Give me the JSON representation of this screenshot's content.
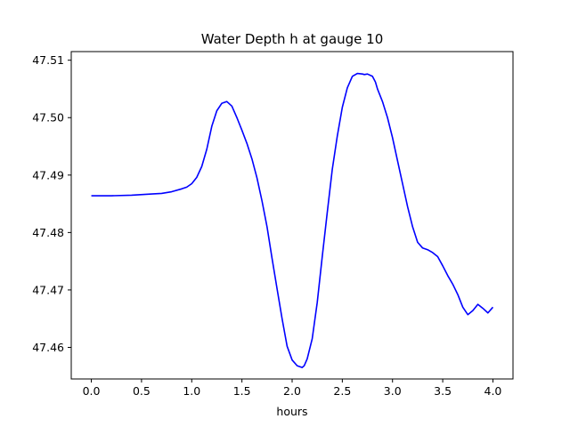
{
  "chart_data": {
    "type": "line",
    "title": "Water Depth h at gauge 10",
    "xlabel": "hours",
    "ylabel": "",
    "xlim": [
      -0.2,
      4.2
    ],
    "ylim": [
      47.4545,
      47.5115
    ],
    "xticks": [
      0.0,
      0.5,
      1.0,
      1.5,
      2.0,
      2.5,
      3.0,
      3.5,
      4.0
    ],
    "xtick_labels": [
      "0.0",
      "0.5",
      "1.0",
      "1.5",
      "2.0",
      "2.5",
      "3.0",
      "3.5",
      "4.0"
    ],
    "yticks": [
      47.46,
      47.47,
      47.48,
      47.49,
      47.5,
      47.51
    ],
    "ytick_labels": [
      "47.46",
      "47.47",
      "47.48",
      "47.49",
      "47.50",
      "47.51"
    ],
    "grid": false,
    "legend": "none",
    "series": [
      {
        "color": "#0000ff",
        "x": [
          0.0,
          0.2,
          0.4,
          0.6,
          0.7,
          0.8,
          0.9,
          0.95,
          1.0,
          1.05,
          1.1,
          1.15,
          1.2,
          1.25,
          1.3,
          1.35,
          1.4,
          1.45,
          1.5,
          1.55,
          1.6,
          1.65,
          1.7,
          1.75,
          1.8,
          1.85,
          1.9,
          1.95,
          2.0,
          2.05,
          2.1,
          2.12,
          2.15,
          2.2,
          2.25,
          2.3,
          2.35,
          2.4,
          2.45,
          2.5,
          2.55,
          2.6,
          2.65,
          2.7,
          2.72,
          2.75,
          2.8,
          2.83,
          2.85,
          2.9,
          2.95,
          3.0,
          3.05,
          3.1,
          3.15,
          3.2,
          3.25,
          3.3,
          3.35,
          3.4,
          3.45,
          3.5,
          3.55,
          3.6,
          3.65,
          3.7,
          3.75,
          3.8,
          3.85,
          3.9,
          3.95,
          4.0
        ],
        "y": [
          47.4864,
          47.4864,
          47.4865,
          47.4867,
          47.4868,
          47.4871,
          47.4876,
          47.4879,
          47.4885,
          47.4896,
          47.4915,
          47.4945,
          47.4985,
          47.5012,
          47.5025,
          47.5028,
          47.502,
          47.5,
          47.4978,
          47.4955,
          47.4928,
          47.4895,
          47.4855,
          47.481,
          47.4755,
          47.4702,
          47.465,
          47.4602,
          47.4578,
          47.4568,
          47.4565,
          47.4568,
          47.458,
          47.4615,
          47.4678,
          47.4758,
          47.4835,
          47.491,
          47.4968,
          47.5018,
          47.5052,
          47.5072,
          47.5077,
          47.5076,
          47.5075,
          47.5076,
          47.5072,
          47.5062,
          47.505,
          47.5028,
          47.5,
          47.4965,
          47.4925,
          47.4885,
          47.4845,
          47.481,
          47.4783,
          47.4773,
          47.477,
          47.4765,
          47.4758,
          47.4742,
          47.4725,
          47.471,
          47.4692,
          47.467,
          47.4657,
          47.4664,
          47.4675,
          47.4668,
          47.466,
          47.467
        ]
      }
    ]
  }
}
